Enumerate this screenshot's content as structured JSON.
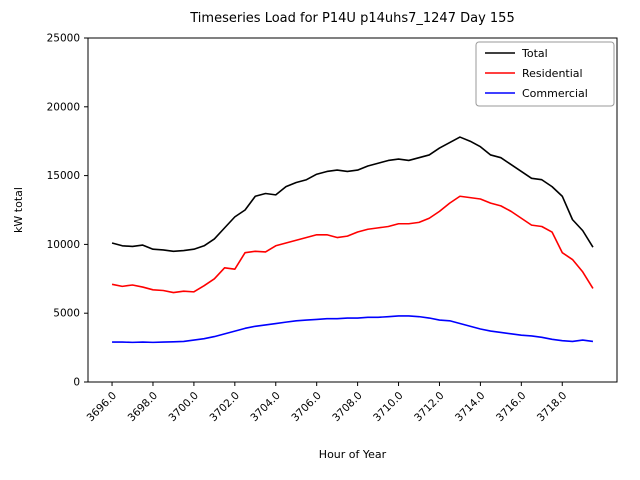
{
  "chart_data": {
    "type": "line",
    "title": "Timeseries Load for P14U p14uhs7_1247  Day 155",
    "xlabel": "Hour of Year",
    "ylabel": "kW total",
    "ylim": [
      0,
      25000
    ],
    "yticks": [
      0,
      5000,
      10000,
      15000,
      20000,
      25000
    ],
    "ytick_labels": [
      "0",
      "5000",
      "10000",
      "15000",
      "20000",
      "25000"
    ],
    "xticks": [
      3696,
      3698,
      3700,
      3702,
      3704,
      3706,
      3708,
      3710,
      3712,
      3714,
      3716,
      3718
    ],
    "xtick_labels": [
      "3696.0",
      "3698.0",
      "3700.0",
      "3702.0",
      "3704.0",
      "3706.0",
      "3708.0",
      "3710.0",
      "3712.0",
      "3714.0",
      "3716.0",
      "3718.0"
    ],
    "legend_position": "upper right",
    "grid": false,
    "x": [
      3696.0,
      3696.5,
      3697.0,
      3697.5,
      3698.0,
      3698.5,
      3699.0,
      3699.5,
      3700.0,
      3700.5,
      3701.0,
      3701.5,
      3702.0,
      3702.5,
      3703.0,
      3703.5,
      3704.0,
      3704.5,
      3705.0,
      3705.5,
      3706.0,
      3706.5,
      3707.0,
      3707.5,
      3708.0,
      3708.5,
      3709.0,
      3709.5,
      3710.0,
      3710.5,
      3711.0,
      3711.5,
      3712.0,
      3712.5,
      3713.0,
      3713.5,
      3714.0,
      3714.5,
      3715.0,
      3715.5,
      3716.0,
      3716.5,
      3717.0,
      3717.5,
      3718.0,
      3718.5,
      3719.0,
      3719.5
    ],
    "series": [
      {
        "name": "Total",
        "color": "#000000",
        "values": [
          10100,
          9900,
          9850,
          9950,
          9650,
          9600,
          9500,
          9550,
          9650,
          9900,
          10400,
          11200,
          12000,
          12500,
          13500,
          13700,
          13600,
          14200,
          14500,
          14700,
          15100,
          15300,
          15400,
          15300,
          15400,
          15700,
          15900,
          16100,
          16200,
          16100,
          16300,
          16500,
          17000,
          17400,
          17800,
          17500,
          17100,
          16500,
          16300,
          15800,
          15300,
          14800,
          14700,
          14200,
          13500,
          11800,
          11000,
          9800
        ]
      },
      {
        "name": "Residential",
        "color": "#ff0000",
        "values": [
          7100,
          6950,
          7050,
          6900,
          6700,
          6650,
          6500,
          6600,
          6550,
          7000,
          7500,
          8300,
          8200,
          9400,
          9500,
          9450,
          9900,
          10100,
          10300,
          10500,
          10700,
          10700,
          10500,
          10600,
          10900,
          11100,
          11200,
          11300,
          11500,
          11500,
          11600,
          11900,
          12400,
          13000,
          13500,
          13400,
          13300,
          13000,
          12800,
          12400,
          11900,
          11400,
          11300,
          10900,
          9400,
          8900,
          8000,
          6800
        ]
      },
      {
        "name": "Commercial",
        "color": "#0000ff",
        "values": [
          2900,
          2900,
          2880,
          2900,
          2880,
          2900,
          2920,
          2950,
          3050,
          3150,
          3300,
          3500,
          3700,
          3900,
          4050,
          4150,
          4250,
          4350,
          4450,
          4500,
          4550,
          4600,
          4600,
          4650,
          4650,
          4700,
          4700,
          4750,
          4800,
          4800,
          4750,
          4650,
          4500,
          4450,
          4250,
          4050,
          3850,
          3700,
          3600,
          3500,
          3400,
          3350,
          3250,
          3100,
          3000,
          2950,
          3050,
          2950
        ]
      }
    ]
  }
}
